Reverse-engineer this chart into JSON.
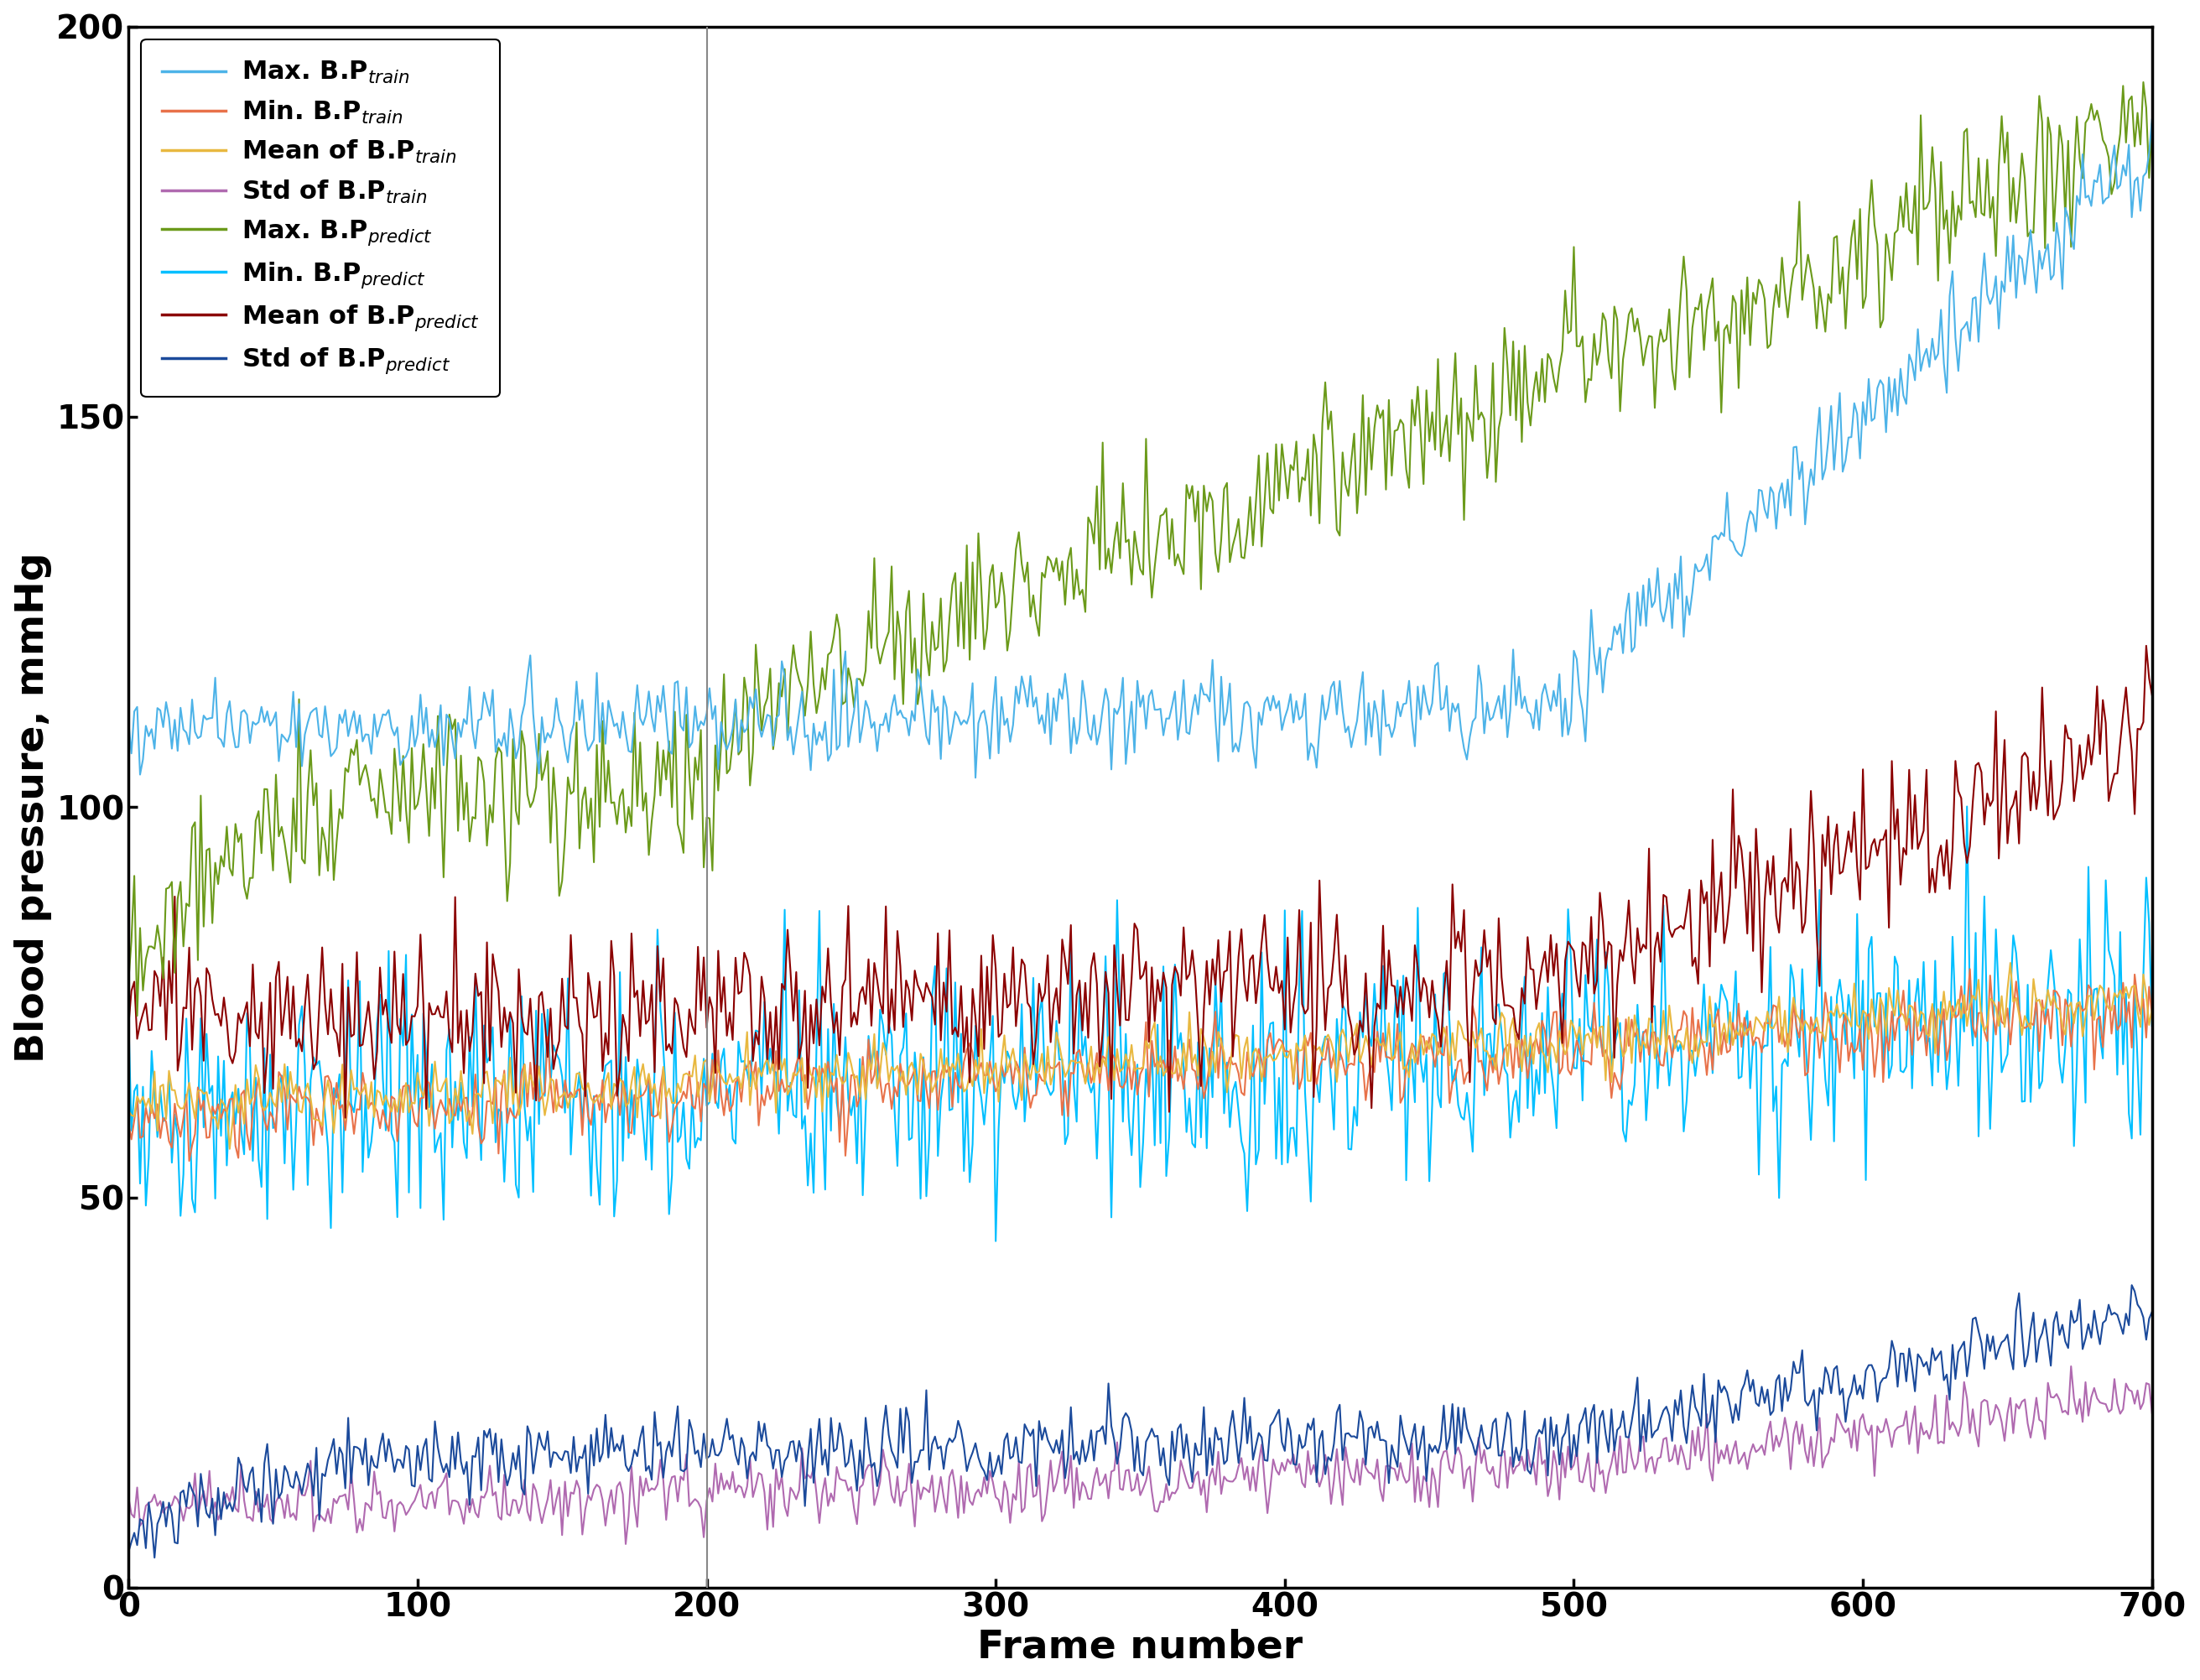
{
  "xlabel": "Frame number",
  "ylabel": "Blood pressure, mmHg",
  "xlim": [
    0,
    700
  ],
  "ylim": [
    0,
    200
  ],
  "xticks": [
    0,
    100,
    200,
    300,
    400,
    500,
    600,
    700
  ],
  "yticks": [
    0,
    50,
    100,
    150,
    200
  ],
  "legend_labels": [
    "Max. B.P$_{train}$",
    "Min. B.P$_{train}$",
    "Mean of B.P$_{train}$",
    "Std of B.P$_{train}$",
    "Max. B.P$_{predict}$",
    "Min. B.P$_{predict}$",
    "Mean of B.P$_{predict}$",
    "Std of B.P$_{predict}$"
  ],
  "colors": {
    "max_train": "#4DB3E8",
    "min_train": "#E8724A",
    "mean_train": "#E8B840",
    "std_train": "#B06AB0",
    "max_predict": "#6B9A1A",
    "min_predict": "#00BFFF",
    "mean_predict": "#8B0000",
    "std_predict": "#1B4A9B"
  },
  "n_points": 701,
  "seed": 42,
  "line_width": 1.5,
  "xlabel_fontsize": 34,
  "ylabel_fontsize": 34,
  "tick_fontsize": 28,
  "legend_fontsize": 22,
  "vline_x": 200,
  "vline_color": "#888888"
}
